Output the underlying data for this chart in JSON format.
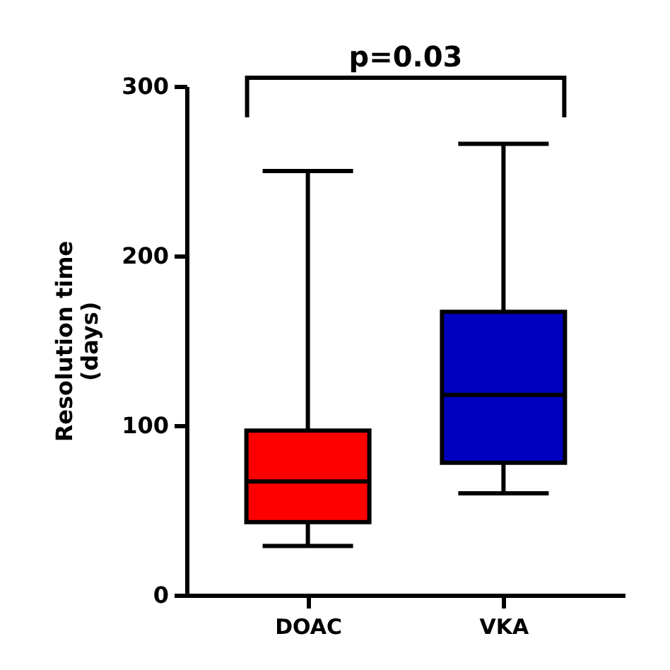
{
  "chart_data": {
    "type": "box",
    "ylabel": "Resolution time\n(days)",
    "categories": [
      "DOAC",
      "VKA"
    ],
    "boxes": [
      {
        "low": 29,
        "q1": 43,
        "median": 67,
        "q3": 97,
        "high": 250
      },
      {
        "low": 60,
        "q1": 78,
        "median": 118,
        "q3": 167,
        "high": 266
      }
    ],
    "colors": [
      "#ff0000",
      "#0000c0"
    ],
    "ylim": [
      0,
      300
    ],
    "yticks": [
      0,
      100,
      200,
      300
    ],
    "grid": false,
    "legend": false,
    "annotations": [
      "p=0.03"
    ]
  }
}
